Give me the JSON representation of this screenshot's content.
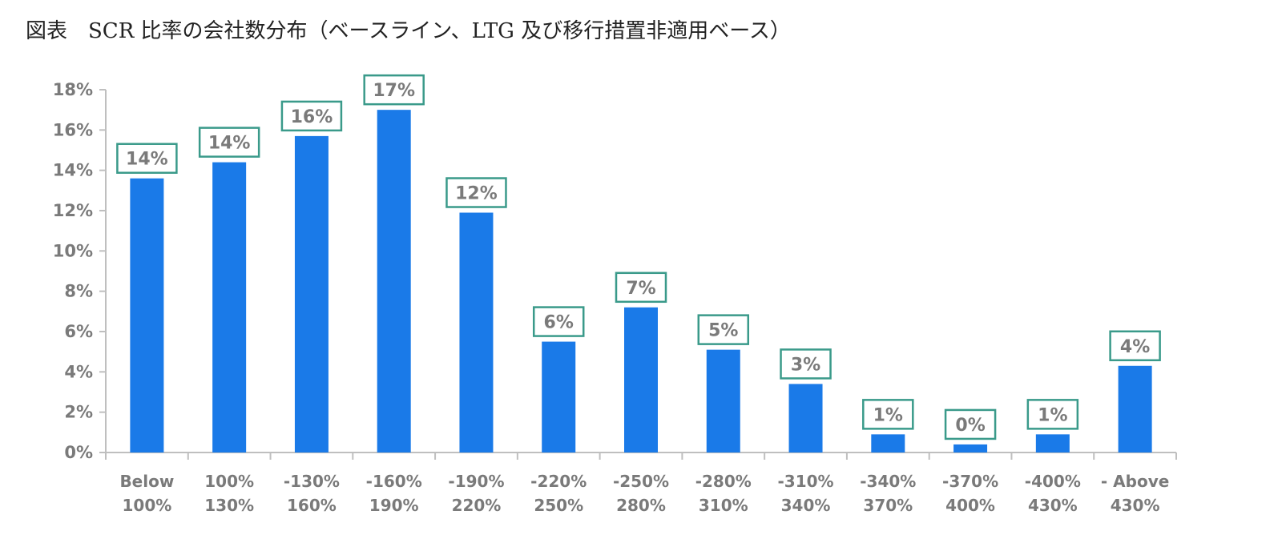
{
  "title": "図表　SCR 比率の会社数分布（ベースライン、LTG 及び移行措置非適用ベース）",
  "colors": {
    "bar": "#1a7ae8",
    "label_box_border": "#3a9a8a",
    "axis": "#bfbfbf",
    "text": "#7a7a7a"
  },
  "chart_data": {
    "type": "bar",
    "title": "",
    "xlabel": "",
    "ylabel": "",
    "ylim": [
      0,
      18
    ],
    "yticks": [
      "0%",
      "2%",
      "4%",
      "6%",
      "8%",
      "10%",
      "12%",
      "14%",
      "16%",
      "18%"
    ],
    "grid": false,
    "legend": "none",
    "categories": [
      [
        "Below",
        "100%"
      ],
      [
        "100%",
        "130%"
      ],
      [
        "-130%",
        "160%"
      ],
      [
        "-160%",
        "190%"
      ],
      [
        "-190%",
        "220%"
      ],
      [
        "-220%",
        "250%"
      ],
      [
        "-250%",
        "280%"
      ],
      [
        "-280%",
        "310%"
      ],
      [
        "-310%",
        "340%"
      ],
      [
        "-340%",
        "370%"
      ],
      [
        "-370%",
        "400%"
      ],
      [
        "-400%",
        "430%"
      ],
      [
        "- Above",
        "430%"
      ]
    ],
    "values": [
      13.6,
      14.4,
      15.7,
      17.0,
      11.9,
      5.5,
      7.2,
      5.1,
      3.4,
      0.9,
      0.4,
      0.9,
      4.3
    ],
    "data_labels": [
      "14%",
      "14%",
      "16%",
      "17%",
      "12%",
      "6%",
      "7%",
      "5%",
      "3%",
      "1%",
      "0%",
      "1%",
      "4%"
    ]
  }
}
